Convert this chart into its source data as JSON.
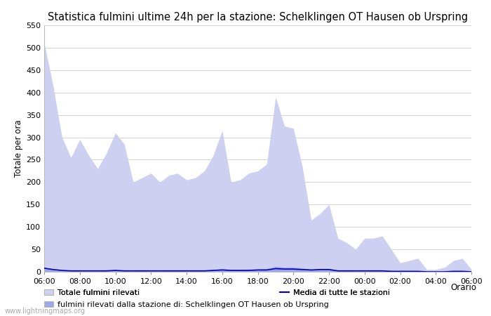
{
  "title": "Statistica fulmini ultime 24h per la stazione: Schelklingen OT Hausen ob Urspring",
  "ylabel": "Totale per ora",
  "xlabel_right": "Orario",
  "watermark": "www.lightningmaps.org",
  "x_labels": [
    "06:00",
    "08:00",
    "10:00",
    "12:00",
    "14:00",
    "16:00",
    "18:00",
    "20:00",
    "22:00",
    "00:00",
    "02:00",
    "04:00",
    "06:00"
  ],
  "ylim": [
    0,
    550
  ],
  "yticks": [
    0,
    50,
    100,
    150,
    200,
    250,
    300,
    350,
    400,
    450,
    500,
    550
  ],
  "fill_color_light": "#cdd0f0",
  "fill_color_dark": "#9da8e8",
  "line_color": "#0000bb",
  "total_x": [
    0,
    1,
    2,
    3,
    4,
    5,
    6,
    7,
    8,
    9,
    10,
    11,
    12,
    13,
    14,
    15,
    16,
    17,
    18,
    19,
    20,
    21,
    22,
    23,
    24,
    25,
    26,
    27,
    28,
    29,
    30,
    31,
    32,
    33,
    34,
    35,
    36,
    37,
    38,
    39,
    40,
    41,
    42,
    43,
    44,
    45,
    46,
    47,
    48
  ],
  "total_y": [
    510,
    415,
    300,
    255,
    295,
    260,
    230,
    265,
    310,
    285,
    200,
    210,
    220,
    200,
    215,
    220,
    205,
    210,
    225,
    260,
    315,
    200,
    205,
    220,
    225,
    240,
    390,
    325,
    320,
    235,
    115,
    130,
    150,
    75,
    65,
    50,
    75,
    75,
    80,
    50,
    20,
    25,
    30,
    5,
    5,
    10,
    25,
    30,
    5
  ],
  "station_y": [
    10,
    5,
    3,
    2,
    3,
    2,
    2,
    3,
    4,
    3,
    2,
    3,
    3,
    2,
    3,
    3,
    3,
    3,
    3,
    5,
    7,
    5,
    5,
    6,
    6,
    7,
    12,
    10,
    10,
    8,
    5,
    6,
    7,
    3,
    3,
    2,
    3,
    3,
    3,
    2,
    1,
    1,
    1,
    0,
    0,
    0,
    1,
    1,
    0
  ],
  "mean_y": [
    8,
    5,
    3,
    2,
    2,
    2,
    2,
    2,
    3,
    2,
    2,
    2,
    2,
    2,
    2,
    2,
    2,
    2,
    2,
    3,
    4,
    3,
    3,
    3,
    4,
    4,
    7,
    6,
    6,
    5,
    4,
    5,
    5,
    2,
    2,
    2,
    2,
    2,
    2,
    1,
    1,
    1,
    1,
    0,
    0,
    0,
    1,
    1,
    0
  ],
  "legend_fill_light": "Totale fulmini rilevati",
  "legend_fill_dark": "fulmini rilevati dalla stazione di: Schelklingen OT Hausen ob Urspring",
  "legend_line": "Media di tutte le stazioni",
  "bg_color": "#ffffff",
  "grid_color": "#cccccc",
  "title_fontsize": 10.5,
  "axis_fontsize": 8.5,
  "tick_fontsize": 8,
  "watermark_fontsize": 7
}
